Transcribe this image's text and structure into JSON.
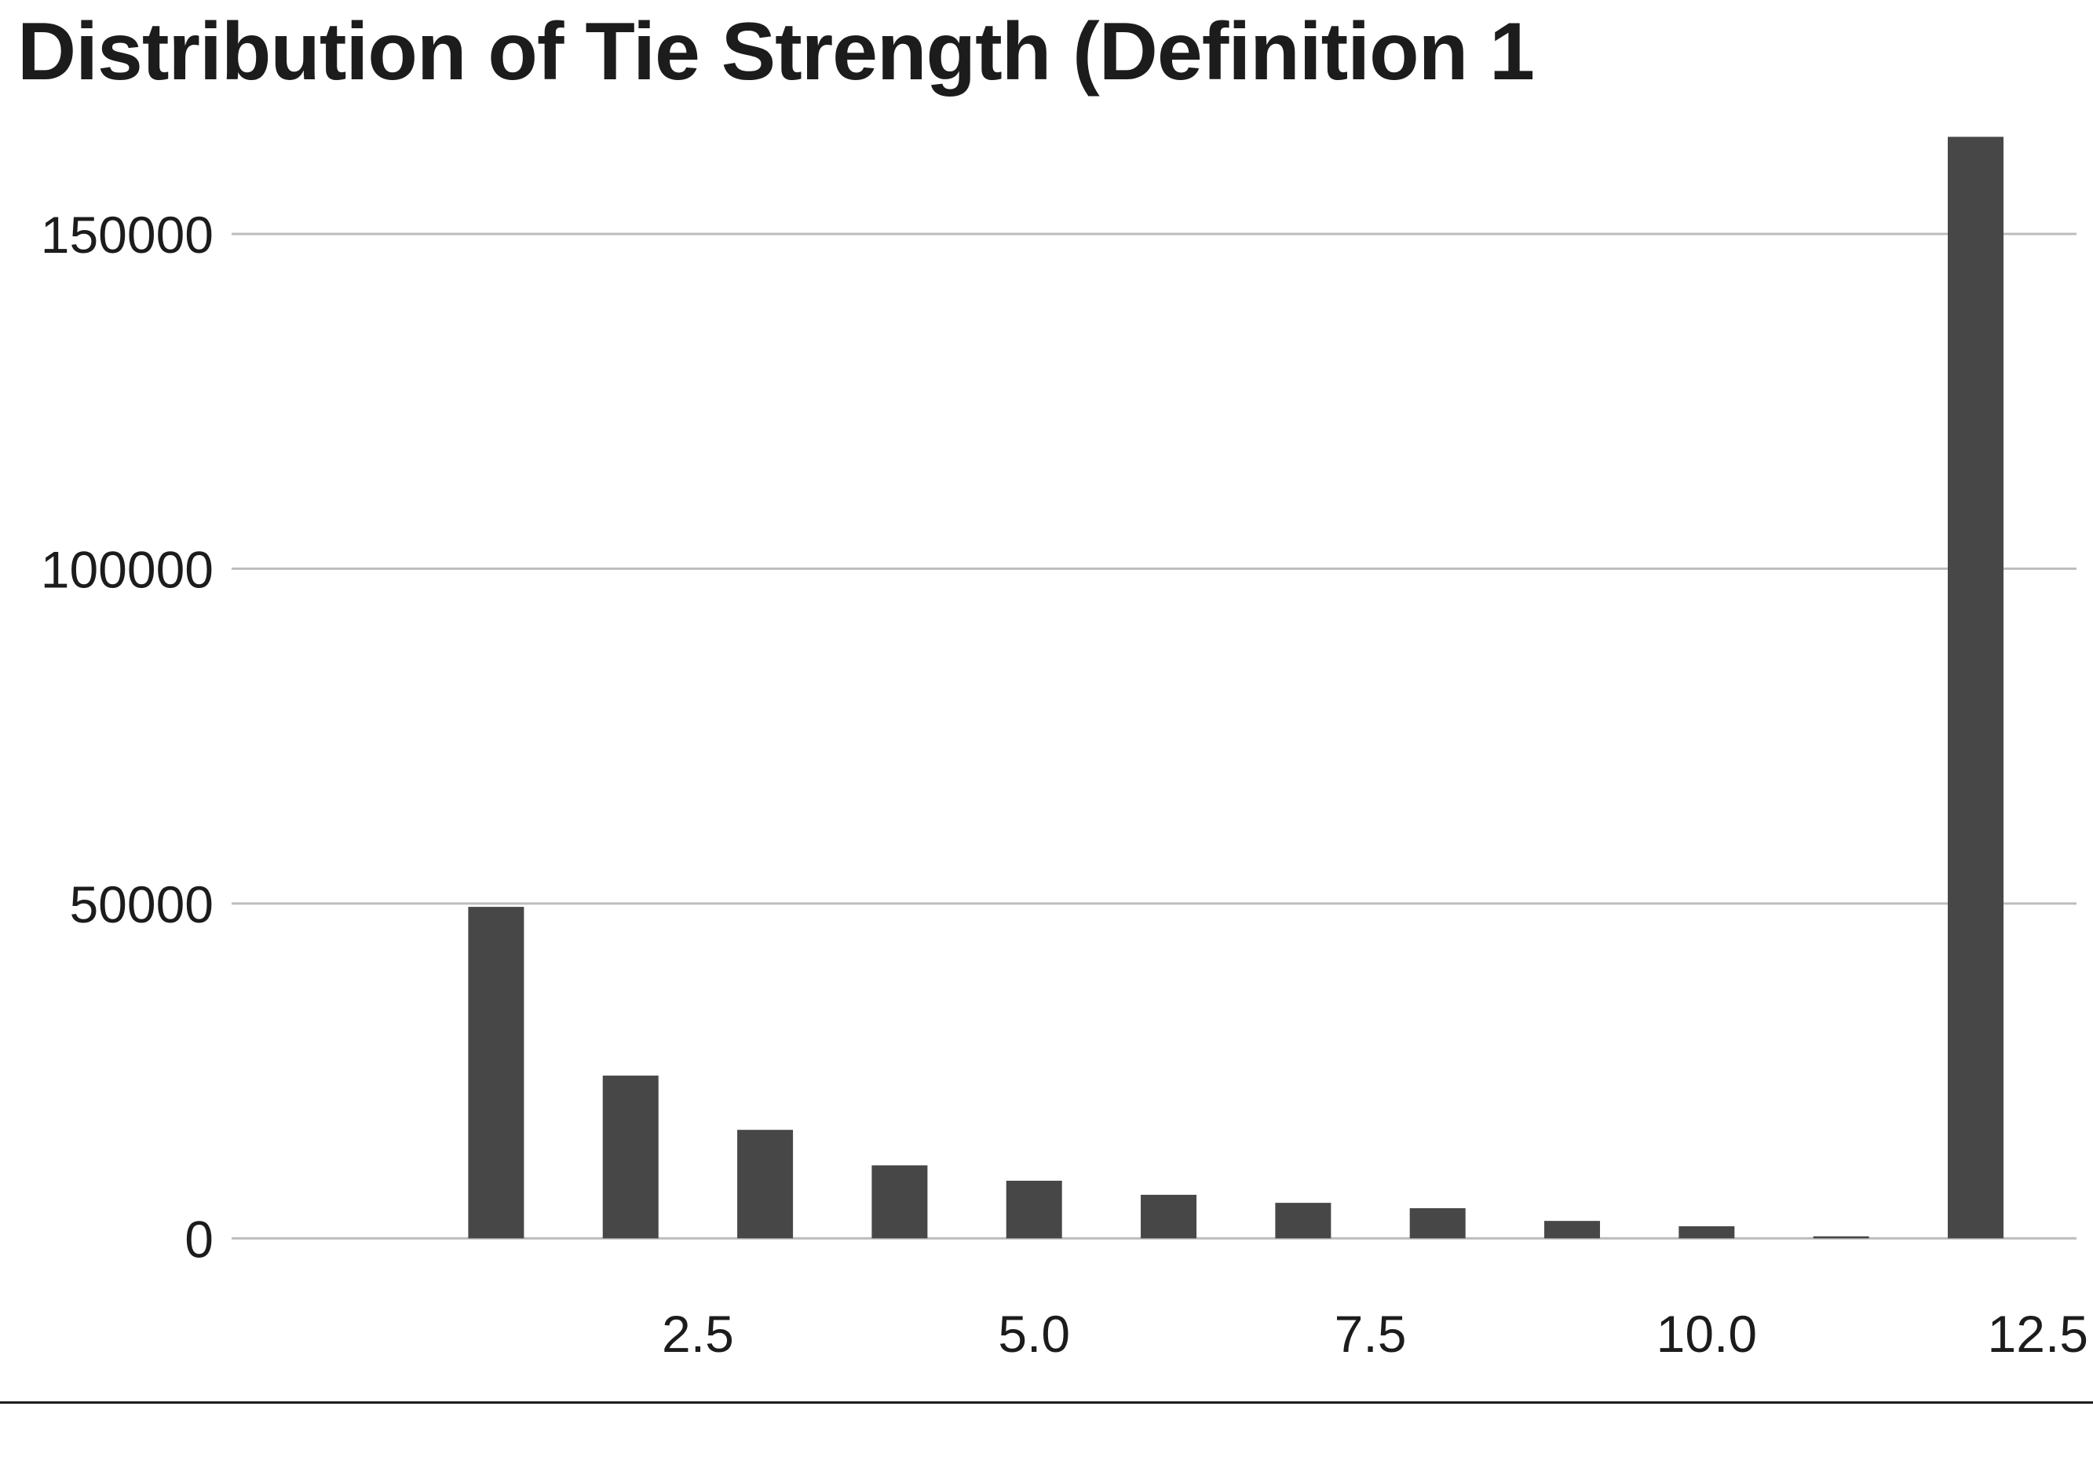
{
  "chart_data": {
    "type": "bar",
    "title": "Distribution of Tie Strength (Definition 1",
    "xlabel": "",
    "ylabel": "",
    "x": [
      1,
      2,
      3,
      4,
      5,
      6,
      7,
      8,
      9,
      10,
      11,
      12
    ],
    "values": [
      49500,
      24300,
      16200,
      10900,
      8600,
      6500,
      5300,
      4500,
      2600,
      1800,
      300,
      164500
    ],
    "xlim": [
      -1.2,
      12.75
    ],
    "ylim": [
      -5000,
      165000
    ],
    "x_ticks": [
      2.5,
      5.0,
      7.5,
      10.0,
      12.5
    ],
    "x_tick_labels": [
      "2.5",
      "5.0",
      "7.5",
      "10.0",
      "12.5"
    ],
    "y_ticks": [
      0,
      50000,
      100000,
      150000
    ],
    "y_tick_labels": [
      "0",
      "50000",
      "100000",
      "150000"
    ],
    "grid": "horizontal",
    "bar_color": "#474747",
    "grid_color": "#bdbdbd",
    "text_color": "#1c1c1c"
  }
}
